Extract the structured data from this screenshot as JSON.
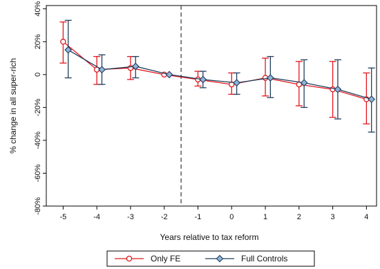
{
  "chart_data": {
    "type": "line",
    "xlabel": "Years relative to tax reform",
    "ylabel": "% change in all super-rich",
    "x_ticks": [
      "-5",
      "-4",
      "-3",
      "-2",
      "-1",
      "0",
      "1",
      "2",
      "3",
      "4"
    ],
    "y_ticks": [
      "-80%",
      "-60%",
      "-40%",
      "-20%",
      "0",
      "20%",
      "40%"
    ],
    "xlim": [
      -5.5,
      4.3
    ],
    "ylim": [
      -80,
      42
    ],
    "reference_line_x": -1.5,
    "grid": false,
    "legend_position": "bottom-center",
    "series": [
      {
        "name": "Only FE",
        "color": "#e0161d",
        "marker": "circle",
        "points": [
          {
            "x": -5,
            "y": 20,
            "lo": 7,
            "hi": 32
          },
          {
            "x": -4,
            "y": 3,
            "lo": -6,
            "hi": 11
          },
          {
            "x": -3,
            "y": 4,
            "lo": -3,
            "hi": 11
          },
          {
            "x": -2,
            "y": 0,
            "lo": 0,
            "hi": 0
          },
          {
            "x": -1,
            "y": -3,
            "lo": -7,
            "hi": 2
          },
          {
            "x": 0,
            "y": -6,
            "lo": -12,
            "hi": 1
          },
          {
            "x": 1,
            "y": -2,
            "lo": -13,
            "hi": 10
          },
          {
            "x": 2,
            "y": -6,
            "lo": -19,
            "hi": 8
          },
          {
            "x": 3,
            "y": -9,
            "lo": -26,
            "hi": 8
          },
          {
            "x": 4,
            "y": -15,
            "lo": -30,
            "hi": 1
          }
        ]
      },
      {
        "name": "Full Controls",
        "color": "#1f3d5c",
        "marker": "diamond",
        "points": [
          {
            "x": -4.85,
            "y": 15,
            "lo": -2,
            "hi": 33
          },
          {
            "x": -3.85,
            "y": 3,
            "lo": -6,
            "hi": 12
          },
          {
            "x": -2.85,
            "y": 5,
            "lo": -2,
            "hi": 11
          },
          {
            "x": -1.85,
            "y": 0,
            "lo": 0,
            "hi": 0
          },
          {
            "x": -0.85,
            "y": -3,
            "lo": -8,
            "hi": 2
          },
          {
            "x": 0.15,
            "y": -5,
            "lo": -12,
            "hi": 1
          },
          {
            "x": 1.15,
            "y": -2,
            "lo": -14,
            "hi": 11
          },
          {
            "x": 2.15,
            "y": -5,
            "lo": -20,
            "hi": 9
          },
          {
            "x": 3.15,
            "y": -9,
            "lo": -27,
            "hi": 9
          },
          {
            "x": 4.15,
            "y": -15,
            "lo": -35,
            "hi": 4
          }
        ]
      }
    ]
  }
}
